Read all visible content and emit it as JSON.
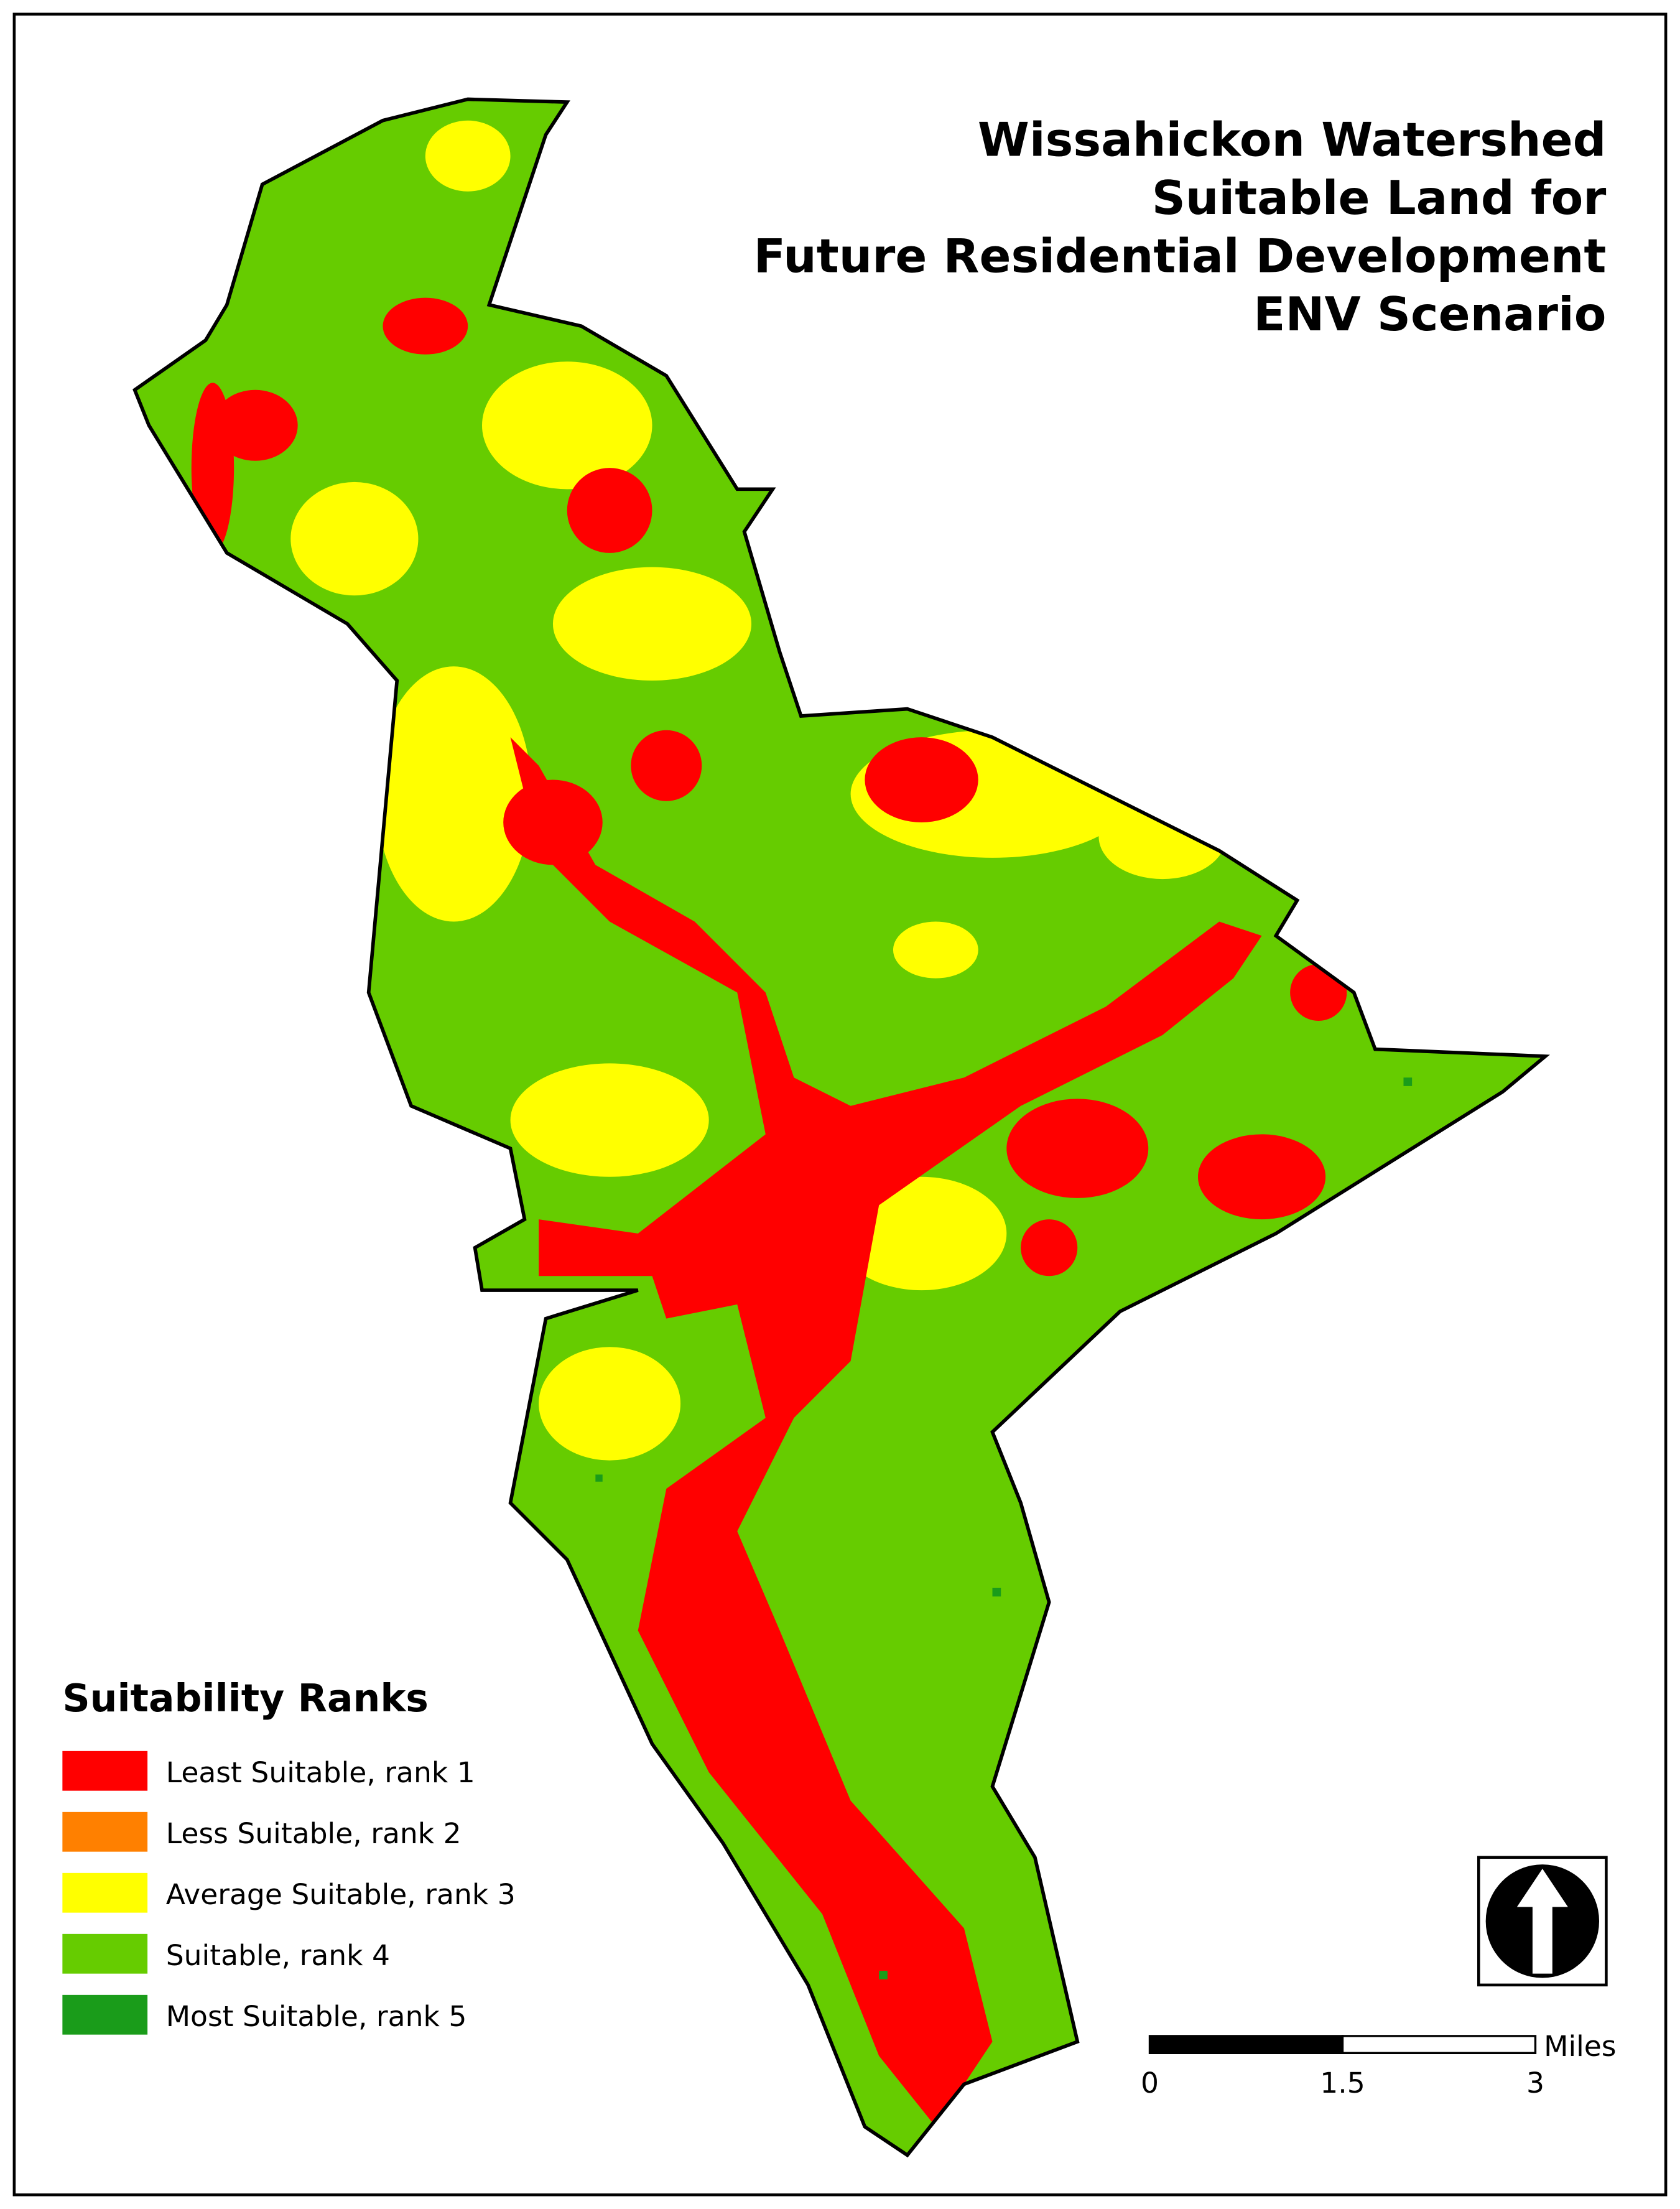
{
  "header": {
    "title_lines": [
      "Wissahickon Watershed",
      "Suitable Land for",
      "Future Residential Development",
      "ENV Scenario"
    ]
  },
  "legend": {
    "title": "Suitability Ranks",
    "items": [
      {
        "label": "Least Suitable, rank 1",
        "color": "#ff0000"
      },
      {
        "label": "Less Suitable, rank 2",
        "color": "#ff8000"
      },
      {
        "label": "Average Suitable, rank 3",
        "color": "#ffff00"
      },
      {
        "label": "Suitable, rank 4",
        "color": "#66cc00"
      },
      {
        "label": "Most Suitable, rank 5",
        "color": "#1a9c1a"
      }
    ]
  },
  "scale_bar": {
    "unit": "Miles",
    "ticks": [
      0,
      1.5,
      3
    ]
  }
}
